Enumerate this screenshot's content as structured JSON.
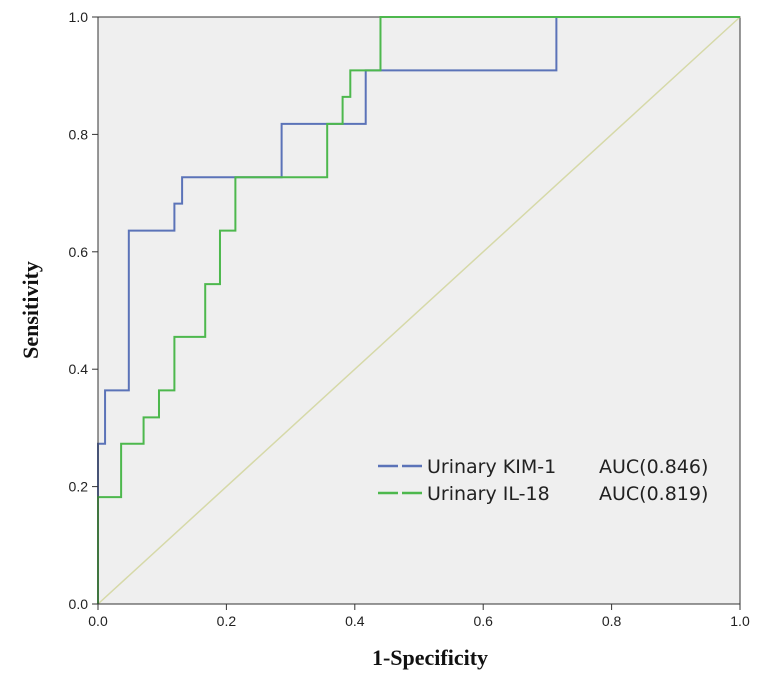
{
  "chart_data": {
    "type": "line",
    "xlabel": "1-Specificity",
    "ylabel": "Sensitivity",
    "xlim": [
      0.0,
      1.0
    ],
    "ylim": [
      0.0,
      1.0
    ],
    "xticks": [
      "0.0",
      "0.2",
      "0.4",
      "0.6",
      "0.8",
      "1.0"
    ],
    "yticks": [
      "0.0",
      "0.2",
      "0.4",
      "0.6",
      "0.8",
      "1.0"
    ],
    "grid": false,
    "legend_position": "bottom-right",
    "reference_line": {
      "x": [
        0,
        1
      ],
      "y": [
        0,
        1
      ],
      "color": "#d6d9a8"
    },
    "series": [
      {
        "name": "Urinary KIM-1",
        "auc_label": "AUC(0.846)",
        "color": "#5b73b8",
        "x": [
          0.0,
          0.0,
          0.0,
          0.011,
          0.011,
          0.048,
          0.048,
          0.119,
          0.119,
          0.131,
          0.131,
          0.286,
          0.286,
          0.417,
          0.417,
          0.714,
          0.714,
          1.0
        ],
        "y": [
          0.0,
          0.182,
          0.273,
          0.273,
          0.364,
          0.364,
          0.636,
          0.636,
          0.682,
          0.682,
          0.727,
          0.727,
          0.818,
          0.818,
          0.909,
          0.909,
          1.0,
          1.0
        ]
      },
      {
        "name": "Urinary IL-18",
        "auc_label": "AUC(0.819)",
        "color": "#4db84d",
        "x": [
          0.0,
          0.0,
          0.036,
          0.036,
          0.071,
          0.071,
          0.095,
          0.095,
          0.119,
          0.119,
          0.167,
          0.167,
          0.19,
          0.19,
          0.214,
          0.214,
          0.357,
          0.357,
          0.381,
          0.381,
          0.393,
          0.393,
          0.44,
          0.44,
          1.0
        ],
        "y": [
          0.0,
          0.182,
          0.182,
          0.273,
          0.273,
          0.318,
          0.318,
          0.364,
          0.364,
          0.455,
          0.455,
          0.545,
          0.545,
          0.636,
          0.636,
          0.727,
          0.727,
          0.818,
          0.818,
          0.864,
          0.864,
          0.909,
          0.909,
          1.0,
          1.0
        ]
      }
    ]
  }
}
